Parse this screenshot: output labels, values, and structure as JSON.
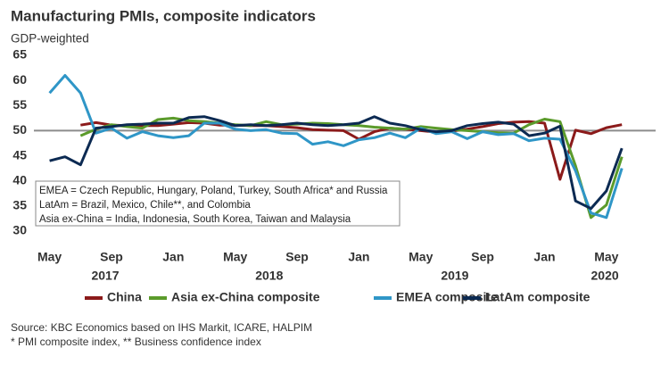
{
  "chart_data": {
    "type": "line",
    "title": "Manufacturing PMIs, composite indicators",
    "subtitle": "GDP-weighted",
    "categories": [
      "May",
      null,
      null,
      null,
      "Sep",
      null,
      null,
      null,
      "Jan",
      null,
      null,
      null,
      "May",
      null,
      null,
      null,
      "Sep",
      null,
      null,
      null,
      "Jan",
      null,
      null,
      null,
      "May",
      null,
      null,
      null,
      "Sep",
      null,
      null,
      null,
      "Jan",
      null,
      null,
      null,
      "May",
      null
    ],
    "years": [
      "2017",
      "2018",
      "2019",
      "2020"
    ],
    "ylim": [
      30,
      65
    ],
    "yticks": [
      30,
      35,
      40,
      45,
      50,
      55,
      60,
      65
    ],
    "reference_line": 50,
    "series": [
      {
        "name": "China",
        "color": "#8b1a1a",
        "values": [
          null,
          null,
          51.1,
          51.6,
          51.1,
          51.0,
          51.0,
          51.0,
          51.3,
          51.6,
          51.5,
          51.1,
          51.1,
          51.0,
          51.0,
          50.8,
          50.6,
          50.2,
          50.1,
          50.0,
          48.3,
          49.8,
          50.5,
          50.3,
          50.0,
          49.7,
          49.9,
          50.3,
          50.8,
          51.4,
          51.7,
          51.8,
          51.5,
          40.3,
          50.1,
          49.4,
          50.6,
          51.2
        ]
      },
      {
        "name": "Asia ex-China composite",
        "color": "#5b9b2b",
        "values": [
          null,
          null,
          49.0,
          50.3,
          51.2,
          50.8,
          50.5,
          52.2,
          52.5,
          52.0,
          51.8,
          51.5,
          51.2,
          51.0,
          51.8,
          51.2,
          51.3,
          51.5,
          51.4,
          51.2,
          51.0,
          50.7,
          50.5,
          50.3,
          50.8,
          50.5,
          50.2,
          50.0,
          49.8,
          49.6,
          49.5,
          51.2,
          52.3,
          51.8,
          43.0,
          32.7,
          35.2,
          44.8
        ]
      },
      {
        "name": "EMEA composite",
        "color": "#2f96c7",
        "values": [
          57.5,
          61.0,
          57.5,
          49.5,
          50.5,
          48.5,
          49.8,
          49.0,
          48.6,
          49.0,
          51.5,
          51.5,
          50.3,
          50.0,
          50.2,
          49.5,
          49.4,
          47.3,
          47.8,
          47.0,
          48.2,
          48.6,
          49.5,
          48.6,
          50.5,
          49.4,
          49.8,
          48.4,
          49.8,
          49.2,
          49.4,
          48.0,
          48.5,
          48.3,
          42.0,
          33.6,
          32.7,
          42.5
        ]
      },
      {
        "name": "LatAm composite",
        "color": "#0c2a52",
        "values": [
          44.0,
          44.8,
          43.2,
          50.5,
          50.8,
          51.2,
          51.3,
          51.5,
          51.5,
          52.6,
          52.8,
          52.0,
          51.0,
          51.2,
          51.0,
          51.2,
          51.5,
          51.2,
          51.0,
          51.2,
          51.5,
          52.8,
          51.5,
          51.0,
          50.2,
          49.8,
          50.0,
          51.0,
          51.4,
          51.7,
          51.3,
          49.0,
          49.5,
          50.9,
          36.0,
          34.5,
          38.0,
          46.5
        ]
      }
    ],
    "notes": [
      "EMEA = Czech Republic, Hungary, Poland, Turkey, South Africa* and Russia",
      "LatAm = Brazil, Mexico, Chile**, and Colombia",
      "Asia ex-China = India, Indonesia, South Korea, Taiwan and Malaysia"
    ],
    "source": [
      "Source: KBC Economics based on IHS Markit, ICARE, HALPIM",
      "* PMI composite index, ** Business confidence index"
    ]
  }
}
